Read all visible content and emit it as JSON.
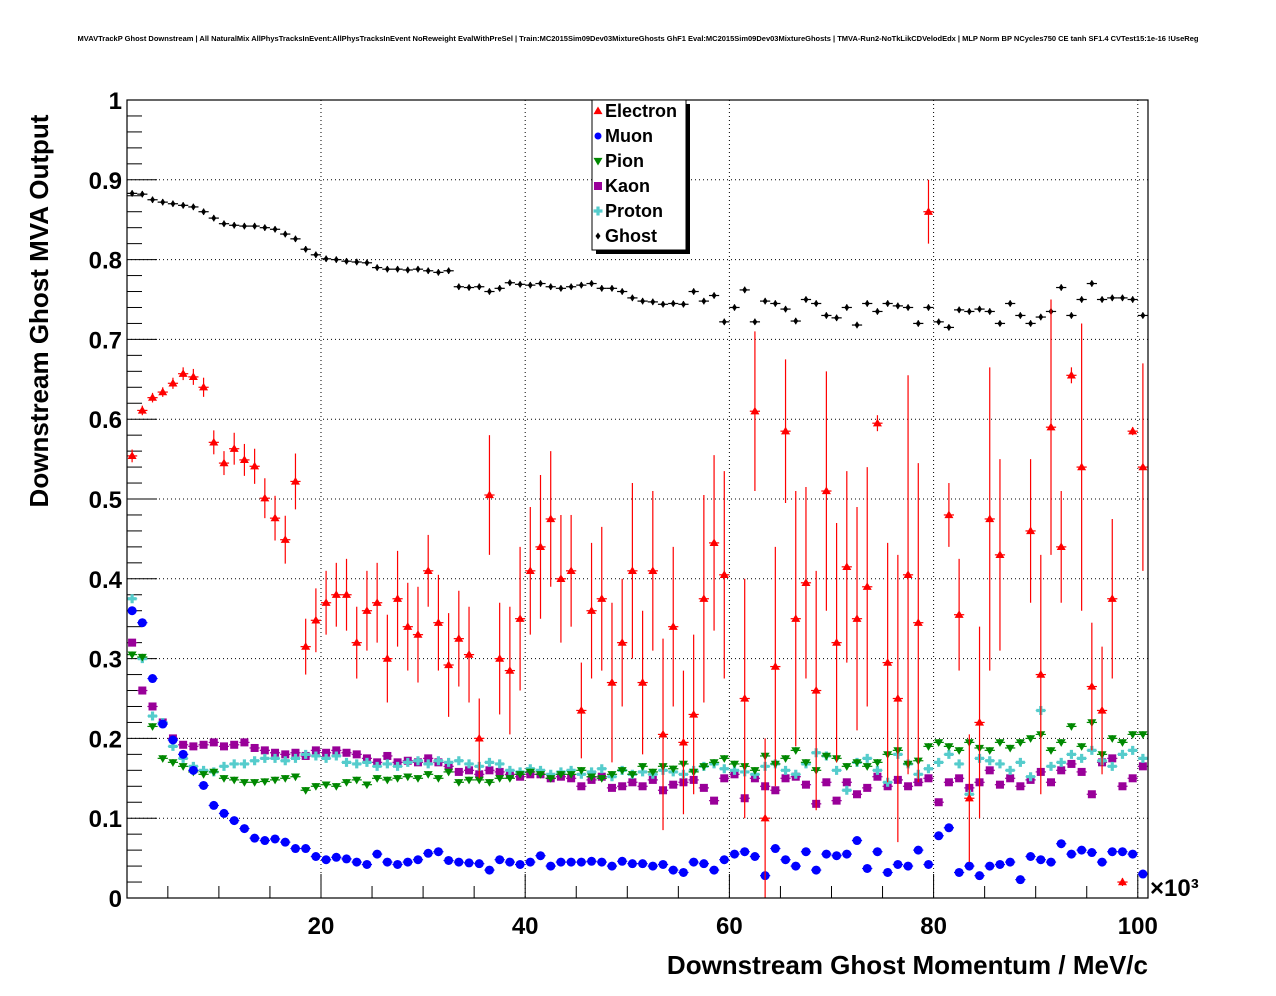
{
  "title": "MVAVTrackP Ghost Downstream | All NaturalMix AllPhysTracksInEvent:AllPhysTracksInEvent NoReweight EvalWithPreSel | Train:MC2015Sim09Dev03MixtureGhosts GhF1 Eval:MC2015Sim09Dev03MixtureGhosts | TMVA-Run2-NoTkLikCDVelodEdx | MLP Norm BP NCycles750 CE tanh SF1.4 CVTest15:1e-16 !UseReg",
  "chart_data": {
    "type": "scatter",
    "title": "MVAVTrackP Ghost Downstream",
    "xlabel": "Downstream Ghost Momentum / MeV/c",
    "ylabel": "Downstream Ghost MVA Output",
    "x_multiplier_label": "×10³",
    "xlim": [
      1,
      101
    ],
    "ylim": [
      0,
      1
    ],
    "x_ticks": [
      "20",
      "40",
      "60",
      "80",
      "100"
    ],
    "x_tick_values": [
      20,
      40,
      60,
      80,
      100
    ],
    "y_ticks": [
      "0",
      "0.1",
      "0.2",
      "0.3",
      "0.4",
      "0.5",
      "0.6",
      "0.7",
      "0.8",
      "0.9",
      "1"
    ],
    "y_tick_values": [
      0,
      0.1,
      0.2,
      0.3,
      0.4,
      0.5,
      0.6,
      0.7,
      0.8,
      0.9,
      1
    ],
    "grid": true,
    "legend_position": "top-center",
    "bin_start": 1,
    "bin_width": 1,
    "series": [
      {
        "name": "Electron",
        "color": "#ff0000",
        "marker": "triangle-up",
        "values": [
          0.554,
          0.611,
          0.627,
          0.634,
          0.645,
          0.657,
          0.653,
          0.64,
          0.571,
          0.545,
          0.563,
          0.549,
          0.541,
          0.501,
          0.476,
          0.449,
          0.522,
          0.315,
          0.348,
          0.37,
          0.38,
          0.38,
          0.32,
          0.36,
          0.37,
          0.3,
          0.375,
          0.34,
          0.33,
          0.41,
          0.345,
          0.292,
          0.325,
          0.305,
          0.2,
          0.505,
          0.3,
          0.285,
          0.35,
          0.41,
          0.44,
          0.475,
          0.4,
          0.41,
          0.235,
          0.36,
          0.375,
          0.27,
          0.32,
          0.41,
          0.27,
          0.41,
          0.205,
          0.34,
          0.195,
          0.23,
          0.375,
          0.445,
          0.405,
          null,
          0.25,
          0.61,
          0.1,
          0.29,
          0.585,
          0.35,
          0.395,
          0.26,
          0.51,
          0.32,
          0.415,
          0.35,
          0.39,
          0.595,
          0.295,
          0.25,
          0.405,
          0.345,
          0.86,
          null,
          0.48,
          0.355,
          0.125,
          0.22,
          0.475,
          0.43,
          null,
          null,
          0.46,
          0.28,
          0.59,
          0.44,
          0.655,
          0.54,
          0.265,
          0.235,
          0.375,
          0.02,
          0.585,
          0.54
        ],
        "yerr": [
          0.008,
          0.006,
          0.006,
          0.006,
          0.007,
          0.008,
          0.01,
          0.012,
          0.015,
          0.015,
          0.02,
          0.02,
          0.022,
          0.025,
          0.028,
          0.03,
          0.035,
          0.035,
          0.04,
          0.04,
          0.04,
          0.045,
          0.045,
          0.05,
          0.05,
          0.055,
          0.06,
          0.055,
          0.06,
          0.045,
          0.06,
          0.065,
          0.06,
          0.06,
          0.05,
          0.075,
          0.07,
          0.08,
          0.09,
          0.08,
          0.09,
          0.085,
          0.08,
          0.07,
          0.06,
          0.085,
          0.09,
          0.1,
          0.08,
          0.11,
          0.09,
          0.1,
          0.12,
          0.1,
          0.09,
          0.1,
          0.13,
          0.11,
          0.13,
          null,
          0.15,
          0.1,
          0.1,
          0.15,
          0.09,
          0.16,
          0.12,
          0.15,
          0.15,
          0.15,
          0.12,
          0.14,
          0.15,
          0.01,
          0.15,
          0.18,
          0.25,
          0.2,
          0.04,
          null,
          0.04,
          0.07,
          0.08,
          0.12,
          0.19,
          0.12,
          null,
          null,
          0.09,
          0.15,
          0.16,
          0.07,
          0.01,
          0.18,
          0.08,
          0.08,
          0.1,
          0.005,
          0.005,
          0.13
        ]
      },
      {
        "name": "Muon",
        "color": "#0000ff",
        "marker": "circle",
        "values": [
          0.36,
          0.345,
          0.275,
          0.218,
          0.198,
          0.18,
          0.16,
          0.141,
          0.116,
          0.106,
          0.097,
          0.087,
          0.075,
          0.072,
          0.074,
          0.07,
          0.062,
          0.062,
          0.052,
          0.048,
          0.051,
          0.049,
          0.045,
          0.042,
          0.055,
          0.045,
          0.042,
          0.045,
          0.048,
          0.056,
          0.058,
          0.047,
          0.045,
          0.044,
          0.043,
          0.035,
          0.048,
          0.045,
          0.042,
          0.045,
          0.053,
          0.04,
          0.045,
          0.045,
          0.045,
          0.046,
          0.045,
          0.04,
          0.046,
          0.043,
          0.043,
          0.04,
          0.042,
          0.035,
          0.032,
          0.045,
          0.043,
          0.035,
          0.048,
          0.055,
          0.058,
          0.052,
          0.028,
          0.062,
          0.048,
          0.04,
          0.058,
          0.035,
          0.055,
          0.053,
          0.055,
          0.072,
          0.037,
          0.058,
          0.032,
          0.042,
          0.04,
          0.06,
          0.042,
          0.078,
          0.088,
          0.032,
          0.04,
          0.028,
          0.04,
          0.042,
          0.045,
          0.023,
          0.052,
          0.048,
          0.045,
          0.068,
          0.055,
          0.06,
          0.057,
          0.045,
          0.058,
          0.058,
          0.055,
          0.03
        ]
      },
      {
        "name": "Pion",
        "color": "#008800",
        "marker": "triangle-down",
        "values": [
          0.305,
          0.302,
          0.215,
          0.175,
          0.17,
          0.165,
          0.158,
          0.155,
          0.158,
          0.15,
          0.148,
          0.145,
          0.145,
          0.146,
          0.148,
          0.15,
          0.152,
          0.135,
          0.14,
          0.142,
          0.14,
          0.145,
          0.148,
          0.142,
          0.15,
          0.148,
          0.15,
          0.152,
          0.15,
          0.155,
          0.15,
          0.158,
          0.145,
          0.148,
          0.148,
          0.145,
          0.15,
          0.15,
          0.155,
          0.158,
          0.155,
          0.15,
          0.155,
          0.155,
          0.16,
          0.152,
          0.15,
          0.155,
          0.16,
          0.155,
          0.165,
          0.158,
          0.165,
          0.162,
          0.168,
          0.158,
          0.165,
          0.17,
          0.175,
          0.168,
          0.165,
          0.16,
          0.178,
          0.168,
          0.175,
          0.185,
          0.17,
          0.16,
          0.178,
          0.175,
          0.165,
          0.17,
          0.165,
          0.17,
          0.18,
          0.185,
          0.168,
          0.172,
          0.19,
          0.195,
          0.19,
          0.185,
          0.195,
          0.188,
          0.185,
          0.195,
          0.188,
          0.195,
          0.2,
          0.205,
          0.185,
          0.195,
          0.215,
          0.19,
          0.22,
          0.18,
          0.2,
          0.195,
          0.205,
          0.205
        ]
      },
      {
        "name": "Kaon",
        "color": "#990099",
        "marker": "square",
        "values": [
          0.32,
          0.26,
          0.24,
          0.22,
          0.2,
          0.192,
          0.19,
          0.192,
          0.195,
          0.19,
          0.192,
          0.195,
          0.188,
          0.185,
          0.182,
          0.18,
          0.182,
          0.178,
          0.185,
          0.182,
          0.185,
          0.182,
          0.18,
          0.175,
          0.17,
          0.178,
          0.17,
          0.172,
          0.17,
          0.175,
          0.17,
          0.165,
          0.158,
          0.16,
          0.155,
          0.16,
          0.158,
          0.155,
          0.152,
          0.155,
          0.155,
          0.15,
          0.152,
          0.15,
          0.14,
          0.148,
          0.152,
          0.138,
          0.14,
          0.145,
          0.14,
          0.148,
          0.135,
          0.142,
          0.145,
          0.148,
          0.138,
          0.122,
          0.15,
          0.155,
          0.125,
          0.15,
          0.14,
          0.135,
          0.15,
          0.152,
          0.142,
          0.118,
          0.145,
          0.122,
          0.145,
          0.13,
          0.138,
          0.152,
          0.14,
          0.148,
          0.14,
          0.145,
          0.15,
          0.12,
          0.145,
          0.15,
          0.138,
          0.145,
          0.16,
          0.142,
          0.15,
          0.14,
          0.148,
          0.158,
          0.145,
          0.16,
          0.168,
          0.158,
          0.13,
          0.17,
          0.175,
          0.14,
          0.15,
          0.165
        ]
      },
      {
        "name": "Proton",
        "color": "#55cccc",
        "marker": "cross",
        "values": [
          0.375,
          0.3,
          0.228,
          0.22,
          0.19,
          0.175,
          0.165,
          0.16,
          0.158,
          0.165,
          0.168,
          0.168,
          0.172,
          0.175,
          0.175,
          0.172,
          0.175,
          0.18,
          0.178,
          0.175,
          0.178,
          0.17,
          0.168,
          0.17,
          0.165,
          0.168,
          0.165,
          0.17,
          0.172,
          0.168,
          0.172,
          0.17,
          0.172,
          0.168,
          0.165,
          0.17,
          0.168,
          0.16,
          0.158,
          0.162,
          0.16,
          0.155,
          0.158,
          0.16,
          0.155,
          0.158,
          0.162,
          0.152,
          0.16,
          0.155,
          0.158,
          0.155,
          0.16,
          0.158,
          0.155,
          0.16,
          0.165,
          0.168,
          0.162,
          0.16,
          0.158,
          0.155,
          0.165,
          0.168,
          0.16,
          0.155,
          0.168,
          0.182,
          0.178,
          0.16,
          0.135,
          0.17,
          0.175,
          0.16,
          0.145,
          0.18,
          0.168,
          0.155,
          0.162,
          0.17,
          0.18,
          0.168,
          0.13,
          0.175,
          0.172,
          0.168,
          0.16,
          0.17,
          0.152,
          0.235,
          0.165,
          0.17,
          0.18,
          0.175,
          0.185,
          0.172,
          0.165,
          0.18,
          0.185,
          0.175
        ]
      },
      {
        "name": "Ghost",
        "color": "#000000",
        "marker": "diamond",
        "values": [
          0.883,
          0.882,
          0.875,
          0.872,
          0.87,
          0.868,
          0.866,
          0.86,
          0.852,
          0.845,
          0.843,
          0.842,
          0.842,
          0.84,
          0.838,
          0.832,
          0.826,
          0.813,
          0.806,
          0.801,
          0.8,
          0.798,
          0.797,
          0.796,
          0.79,
          0.788,
          0.788,
          0.787,
          0.788,
          0.786,
          0.784,
          0.786,
          0.766,
          0.765,
          0.766,
          0.76,
          0.764,
          0.771,
          0.769,
          0.768,
          0.77,
          0.766,
          0.764,
          0.766,
          0.768,
          0.77,
          0.764,
          0.764,
          0.76,
          0.752,
          0.748,
          0.747,
          0.744,
          0.745,
          0.744,
          0.76,
          0.748,
          0.755,
          0.722,
          0.74,
          0.762,
          0.722,
          0.748,
          0.745,
          0.738,
          0.723,
          0.75,
          0.745,
          0.73,
          0.727,
          0.74,
          0.718,
          0.745,
          0.735,
          0.745,
          0.742,
          0.74,
          0.72,
          0.74,
          0.722,
          0.715,
          0.737,
          0.735,
          0.738,
          0.735,
          0.72,
          0.745,
          0.73,
          0.72,
          0.728,
          0.735,
          0.765,
          0.73,
          0.75,
          0.77,
          0.75,
          0.752,
          0.752,
          0.75,
          0.73
        ]
      }
    ]
  }
}
